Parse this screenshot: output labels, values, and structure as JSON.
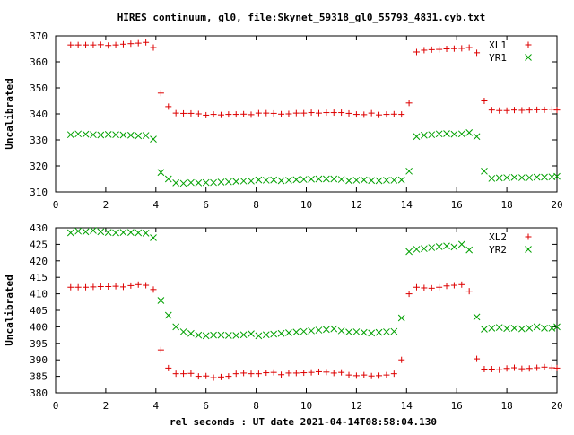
{
  "chart_data": {
    "type": "scatter",
    "title": "HIRES continuum, gl0, file:Skynet_59318_gl0_55793_4831.cyb.txt",
    "xlabel": "rel seconds : UT date 2021-04-14T08:58:04.130",
    "colors": {
      "red_series": "#dd0000",
      "green_series": "#00a000",
      "axes": "#000000"
    },
    "panels": [
      {
        "ylabel": "Uncalibrated",
        "xlim": [
          0,
          20
        ],
        "ylim": [
          310,
          370
        ],
        "xticks": [
          0,
          2,
          4,
          6,
          8,
          10,
          12,
          14,
          16,
          18,
          20
        ],
        "yticks": [
          310,
          320,
          330,
          340,
          350,
          360,
          370
        ],
        "legend_position": "top-right",
        "series": [
          {
            "name": "XL1",
            "marker": "+",
            "color": "#dd0000",
            "x": [
              0.6,
              0.9,
              1.2,
              1.5,
              1.8,
              2.1,
              2.4,
              2.7,
              3.0,
              3.3,
              3.6,
              3.9,
              4.2,
              4.5,
              4.8,
              5.1,
              5.4,
              5.7,
              6.0,
              6.3,
              6.6,
              6.9,
              7.2,
              7.5,
              7.8,
              8.1,
              8.4,
              8.7,
              9.0,
              9.3,
              9.6,
              9.9,
              10.2,
              10.5,
              10.8,
              11.1,
              11.4,
              11.7,
              12.0,
              12.3,
              12.6,
              12.9,
              13.2,
              13.5,
              13.8,
              14.1,
              14.4,
              14.7,
              15.0,
              15.3,
              15.6,
              15.9,
              16.2,
              16.5,
              16.8,
              17.1,
              17.4,
              17.7,
              18.0,
              18.3,
              18.6,
              18.9,
              19.2,
              19.5,
              19.8,
              20.0
            ],
            "y": [
              366.5,
              366.5,
              366.5,
              366.5,
              366.6,
              366.3,
              366.5,
              366.8,
              367.0,
              367.2,
              367.5,
              365.5,
              348.0,
              342.8,
              340.3,
              340.2,
              340.2,
              340.0,
              339.5,
              339.8,
              339.6,
              339.8,
              339.8,
              339.9,
              339.7,
              340.3,
              340.3,
              340.2,
              339.9,
              340.0,
              340.3,
              340.3,
              340.5,
              340.3,
              340.5,
              340.5,
              340.5,
              340.2,
              339.8,
              339.7,
              340.3,
              339.6,
              339.8,
              339.9,
              339.8,
              344.2,
              363.8,
              364.5,
              364.7,
              364.8,
              365.0,
              365.1,
              365.2,
              365.5,
              363.5,
              345.0,
              341.5,
              341.3,
              341.3,
              341.5,
              341.4,
              341.5,
              341.6,
              341.6,
              341.8,
              341.5
            ]
          },
          {
            "name": "YR1",
            "marker": "x",
            "color": "#00a000",
            "x": [
              0.6,
              0.9,
              1.2,
              1.5,
              1.8,
              2.1,
              2.4,
              2.7,
              3.0,
              3.3,
              3.6,
              3.9,
              4.2,
              4.5,
              4.8,
              5.1,
              5.4,
              5.7,
              6.0,
              6.3,
              6.6,
              6.9,
              7.2,
              7.5,
              7.8,
              8.1,
              8.4,
              8.7,
              9.0,
              9.3,
              9.6,
              9.9,
              10.2,
              10.5,
              10.8,
              11.1,
              11.4,
              11.7,
              12.0,
              12.3,
              12.6,
              12.9,
              13.2,
              13.5,
              13.8,
              14.1,
              14.4,
              14.7,
              15.0,
              15.3,
              15.6,
              15.9,
              16.2,
              16.5,
              16.8,
              17.1,
              17.4,
              17.7,
              18.0,
              18.3,
              18.6,
              18.9,
              19.2,
              19.5,
              19.8,
              20.0
            ],
            "y": [
              332.0,
              332.3,
              332.2,
              332.0,
              331.9,
              332.1,
              332.0,
              331.9,
              331.8,
              331.6,
              331.7,
              330.3,
              317.5,
              315.0,
              313.5,
              313.3,
              313.6,
              313.5,
              313.6,
              313.6,
              313.8,
              313.9,
              314.0,
              314.2,
              314.2,
              314.6,
              314.5,
              314.6,
              314.3,
              314.5,
              314.7,
              314.8,
              314.9,
              315.0,
              315.0,
              315.0,
              314.8,
              314.3,
              314.5,
              314.6,
              314.4,
              314.3,
              314.5,
              314.5,
              314.6,
              318.0,
              331.3,
              331.8,
              332.0,
              332.3,
              332.4,
              332.2,
              332.3,
              332.8,
              331.3,
              318.0,
              315.2,
              315.4,
              315.5,
              315.6,
              315.5,
              315.5,
              315.7,
              315.7,
              315.8,
              316.0
            ]
          }
        ]
      },
      {
        "ylabel": "Uncalibrated",
        "xlim": [
          0,
          20
        ],
        "ylim": [
          380,
          430
        ],
        "xticks": [
          0,
          2,
          4,
          6,
          8,
          10,
          12,
          14,
          16,
          18,
          20
        ],
        "yticks": [
          380,
          385,
          390,
          395,
          400,
          405,
          410,
          415,
          420,
          425,
          430
        ],
        "legend_position": "top-right",
        "series": [
          {
            "name": "XL2",
            "marker": "+",
            "color": "#dd0000",
            "x": [
              0.6,
              0.9,
              1.2,
              1.5,
              1.8,
              2.1,
              2.4,
              2.7,
              3.0,
              3.3,
              3.6,
              3.9,
              4.2,
              4.5,
              4.8,
              5.1,
              5.4,
              5.7,
              6.0,
              6.3,
              6.6,
              6.9,
              7.2,
              7.5,
              7.8,
              8.1,
              8.4,
              8.7,
              9.0,
              9.3,
              9.6,
              9.9,
              10.2,
              10.5,
              10.8,
              11.1,
              11.4,
              11.7,
              12.0,
              12.3,
              12.6,
              12.9,
              13.2,
              13.5,
              13.8,
              14.1,
              14.4,
              14.7,
              15.0,
              15.3,
              15.6,
              15.9,
              16.2,
              16.5,
              16.8,
              17.1,
              17.4,
              17.7,
              18.0,
              18.3,
              18.6,
              18.9,
              19.2,
              19.5,
              19.8,
              20.0
            ],
            "y": [
              412.0,
              412.0,
              412.0,
              412.1,
              412.2,
              412.2,
              412.3,
              412.1,
              412.5,
              412.8,
              412.6,
              411.3,
              393.0,
              387.5,
              385.8,
              385.8,
              385.9,
              385.0,
              385.1,
              384.6,
              384.8,
              385.0,
              385.8,
              386.0,
              385.8,
              385.8,
              386.1,
              386.2,
              385.5,
              386.0,
              386.0,
              386.1,
              386.2,
              386.4,
              386.3,
              386.0,
              386.2,
              385.4,
              385.2,
              385.4,
              385.1,
              385.2,
              385.4,
              385.8,
              390.0,
              410.0,
              412.0,
              411.8,
              411.7,
              412.0,
              412.4,
              412.6,
              412.8,
              410.8,
              390.3,
              387.2,
              387.2,
              387.0,
              387.4,
              387.6,
              387.3,
              387.4,
              387.6,
              387.8,
              387.6,
              387.5
            ]
          },
          {
            "name": "YR2",
            "marker": "x",
            "color": "#00a000",
            "x": [
              0.6,
              0.9,
              1.2,
              1.5,
              1.8,
              2.1,
              2.4,
              2.7,
              3.0,
              3.3,
              3.6,
              3.9,
              4.2,
              4.5,
              4.8,
              5.1,
              5.4,
              5.7,
              6.0,
              6.3,
              6.6,
              6.9,
              7.2,
              7.5,
              7.8,
              8.1,
              8.4,
              8.7,
              9.0,
              9.3,
              9.6,
              9.9,
              10.2,
              10.5,
              10.8,
              11.1,
              11.4,
              11.7,
              12.0,
              12.3,
              12.6,
              12.9,
              13.2,
              13.5,
              13.8,
              14.1,
              14.4,
              14.7,
              15.0,
              15.3,
              15.6,
              15.9,
              16.2,
              16.5,
              16.8,
              17.1,
              17.4,
              17.7,
              18.0,
              18.3,
              18.6,
              18.9,
              19.2,
              19.5,
              19.8,
              20.0
            ],
            "y": [
              428.5,
              429.0,
              428.8,
              429.2,
              428.8,
              428.6,
              428.5,
              428.6,
              428.6,
              428.5,
              428.4,
              427.0,
              408.0,
              403.5,
              400.0,
              398.5,
              398.0,
              397.5,
              397.3,
              397.5,
              397.5,
              397.4,
              397.4,
              397.6,
              397.9,
              397.3,
              397.6,
              397.8,
              398.0,
              398.2,
              398.4,
              398.6,
              398.8,
              399.0,
              399.2,
              399.4,
              398.8,
              398.4,
              398.5,
              398.3,
              398.1,
              398.3,
              398.5,
              398.6,
              402.7,
              422.8,
              423.5,
              423.7,
              424.0,
              424.3,
              424.5,
              424.2,
              425.0,
              423.3,
              403.0,
              399.3,
              399.6,
              399.8,
              399.5,
              399.6,
              399.4,
              399.6,
              400.0,
              399.6,
              399.6,
              400.0
            ]
          }
        ]
      }
    ]
  }
}
